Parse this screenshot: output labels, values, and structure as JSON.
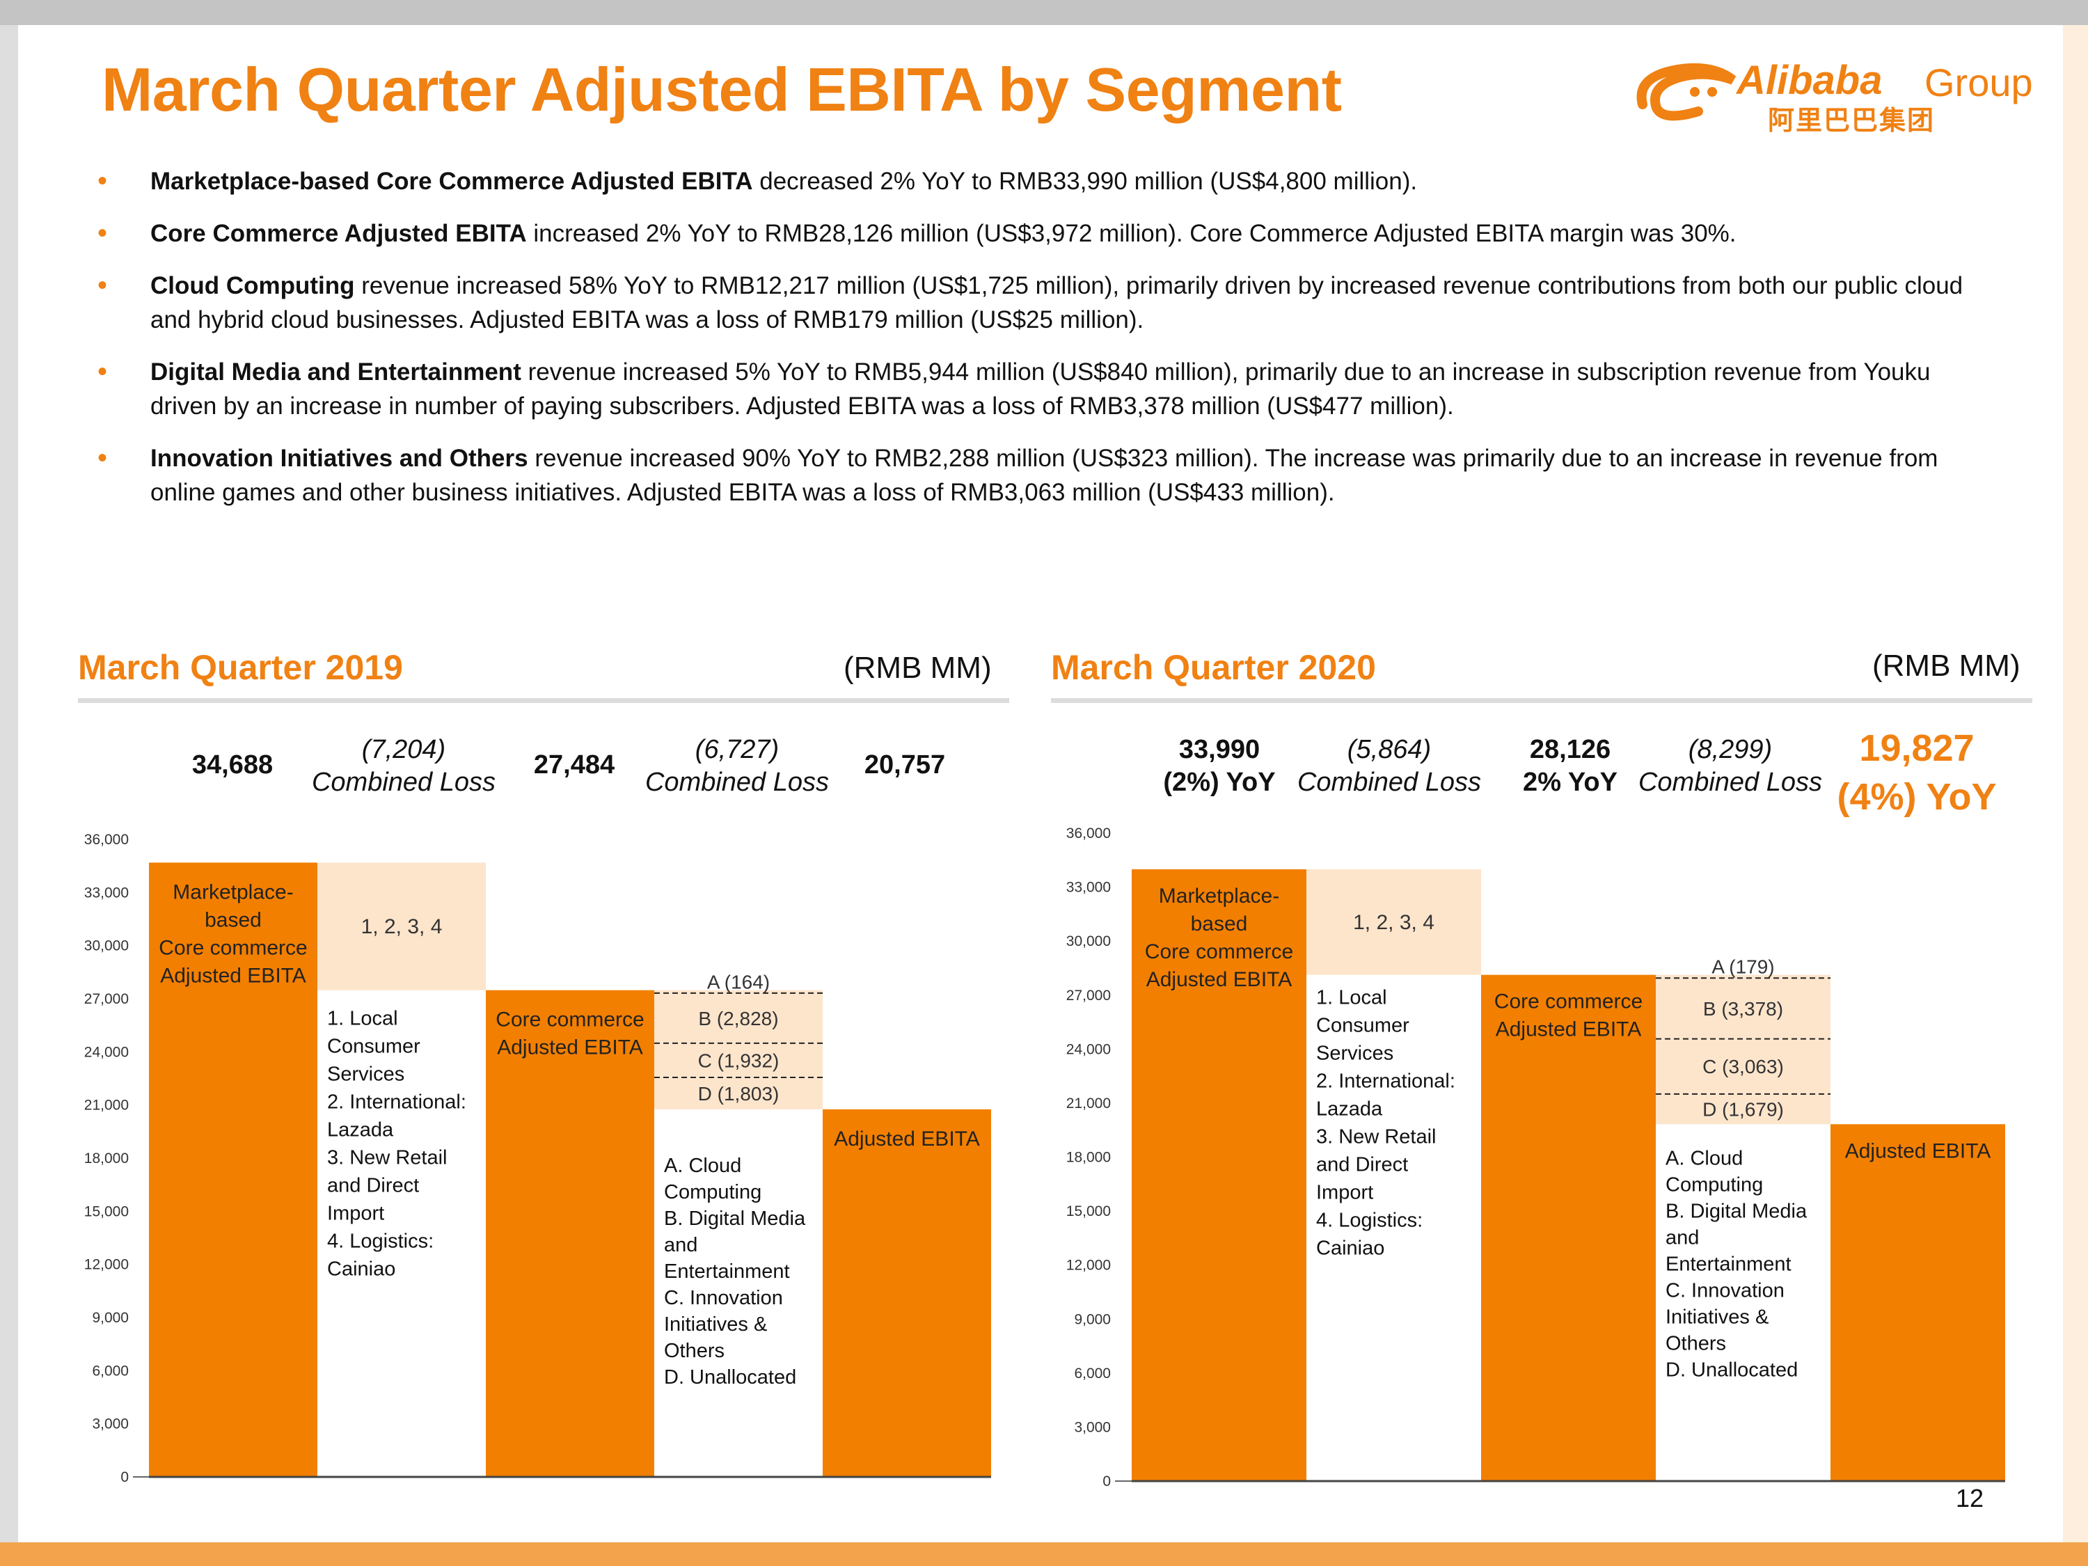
{
  "title": "March Quarter Adjusted EBITA by Segment",
  "logo": {
    "brand": "Alibaba",
    "group": "Group",
    "chinese": "阿里巴巴集团"
  },
  "bullets": [
    {
      "bold": "Marketplace-based Core Commerce Adjusted EBITA",
      "text": " decreased 2% YoY to RMB33,990 million (US$4,800 million)."
    },
    {
      "bold": "Core Commerce Adjusted EBITA",
      "text": " increased 2% YoY to RMB28,126 million (US$3,972 million). Core Commerce Adjusted EBITA margin was 30%."
    },
    {
      "bold": "Cloud Computing",
      "text": " revenue increased 58% YoY to RMB12,217 million (US$1,725 million), primarily driven by increased revenue contributions from both our public cloud and hybrid cloud businesses. Adjusted EBITA was a loss of RMB179 million (US$25 million)."
    },
    {
      "bold": "Digital Media and Entertainment",
      "text": " revenue increased 5% YoY to RMB5,944 million (US$840 million), primarily due to an increase in subscription revenue from Youku driven by an increase in number of paying subscribers. Adjusted EBITA was a loss of RMB3,378 million (US$477 million)."
    },
    {
      "bold": "Innovation Initiatives and Others",
      "text": " revenue increased 90% YoY to RMB2,288 million (US$323 million). The increase was primarily due to an increase in revenue from online games and other business initiatives.  Adjusted EBITA was a loss of RMB3,063 million (US$433 million)."
    }
  ],
  "page_number": "12",
  "colors": {
    "orange": "#f37f00",
    "light": "#fde5cc",
    "accent": "#f08113"
  },
  "chart_data": [
    {
      "type": "waterfall",
      "title": "March Quarter 2019",
      "unit": "(RMB MM)",
      "ylim": [
        0,
        36000
      ],
      "yticks": [
        "0",
        "3,000",
        "6,000",
        "9,000",
        "12,000",
        "15,000",
        "18,000",
        "21,000",
        "24,000",
        "27,000",
        "30,000",
        "33,000",
        "36,000"
      ],
      "headers": {
        "v1": "34,688",
        "l1a": "(7,204)",
        "l1b": "Combined Loss",
        "v2": "27,484",
        "l2a": "(6,727)",
        "l2b": "Combined Loss",
        "v3": "20,757"
      },
      "bars": [
        {
          "kind": "total",
          "value": 34688,
          "label": [
            "Marketplace-",
            "based",
            "Core commerce",
            "Adjusted EBITA"
          ]
        },
        {
          "kind": "loss",
          "value": 7204,
          "label": [
            "1, 2, 3, 4"
          ]
        },
        {
          "kind": "total",
          "value": 27484,
          "label": [
            "Core commerce",
            "Adjusted EBITA"
          ]
        },
        {
          "kind": "loss_stack",
          "components": [
            {
              "name": "A (164)",
              "value": 164
            },
            {
              "name": "B (2,828)",
              "value": 2828
            },
            {
              "name": "C (1,932)",
              "value": 1932
            },
            {
              "name": "D (1,803)",
              "value": 1803
            }
          ]
        },
        {
          "kind": "total",
          "value": 20757,
          "label": [
            "Adjusted EBITA"
          ]
        }
      ],
      "legend1": [
        "1. Local",
        "Consumer",
        "Services",
        "2. International:",
        "Lazada",
        "3. New Retail",
        "and Direct",
        "Import",
        "4. Logistics:",
        "Cainiao"
      ],
      "legend2": [
        "A. Cloud",
        "Computing",
        "B. Digital Media",
        "and",
        "Entertainment",
        "C. Innovation",
        "Initiatives &",
        "Others",
        "D. Unallocated"
      ]
    },
    {
      "type": "waterfall",
      "title": "March Quarter 2020",
      "unit": "(RMB MM)",
      "ylim": [
        0,
        36000
      ],
      "yticks": [
        "0",
        "3,000",
        "6,000",
        "9,000",
        "12,000",
        "15,000",
        "18,000",
        "21,000",
        "24,000",
        "27,000",
        "30,000",
        "33,000",
        "36,000"
      ],
      "headers": {
        "v1": "33,990",
        "v1b": "(2%) YoY",
        "l1a": "(5,864)",
        "l1b": "Combined Loss",
        "v2": "28,126",
        "v2b": "2% YoY",
        "l2a": "(8,299)",
        "l2b": "Combined Loss",
        "v3": "19,827",
        "v3b": "(4%) YoY"
      },
      "bars": [
        {
          "kind": "total",
          "value": 33990,
          "label": [
            "Marketplace-",
            "based",
            "Core commerce",
            "Adjusted EBITA"
          ]
        },
        {
          "kind": "loss",
          "value": 5864,
          "label": [
            "1, 2, 3, 4"
          ]
        },
        {
          "kind": "total",
          "value": 28126,
          "label": [
            "Core commerce",
            "Adjusted EBITA"
          ]
        },
        {
          "kind": "loss_stack",
          "components": [
            {
              "name": "A (179)",
              "value": 179
            },
            {
              "name": "B (3,378)",
              "value": 3378
            },
            {
              "name": "C (3,063)",
              "value": 3063
            },
            {
              "name": "D (1,679)",
              "value": 1679
            }
          ]
        },
        {
          "kind": "total",
          "value": 19827,
          "label": [
            "Adjusted EBITA"
          ]
        }
      ],
      "legend1": [
        "1. Local",
        "Consumer",
        "Services",
        "2. International:",
        "Lazada",
        "3. New Retail",
        "and Direct",
        "Import",
        "4. Logistics:",
        "Cainiao"
      ],
      "legend2": [
        "A. Cloud",
        "Computing",
        "B. Digital Media",
        "and",
        "Entertainment",
        "C. Innovation",
        "Initiatives &",
        "Others",
        "D. Unallocated"
      ]
    }
  ]
}
